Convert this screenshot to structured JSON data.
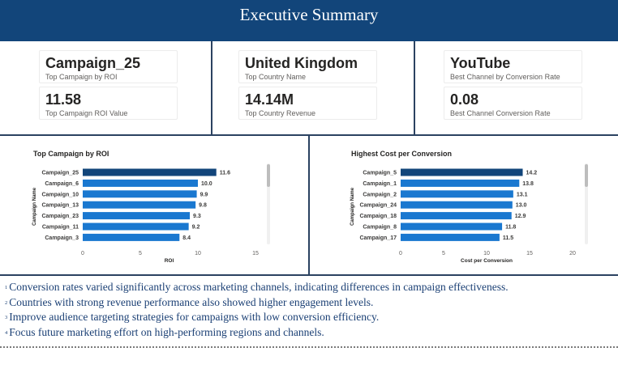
{
  "header": {
    "title": "Executive Summary"
  },
  "cards": [
    {
      "value": "Campaign_25",
      "label": "Top Campaign by ROI"
    },
    {
      "value": "11.58",
      "label": "Top Campaign ROI Value"
    },
    {
      "value": "United Kingdom",
      "label": "Top Country Name"
    },
    {
      "value": "14.14M",
      "label": "Top Country Revenue"
    },
    {
      "value": "YouTube",
      "label": "Best Channel by Conversion Rate"
    },
    {
      "value": "0.08",
      "label": "Best Channel Conversion Rate"
    }
  ],
  "colors": {
    "header": "#12457a",
    "bar_top": "#12457a",
    "bar": "#1a78d0",
    "divider": "#2b4261",
    "notes_text": "#1a3f74"
  },
  "chart_data": [
    {
      "type": "bar",
      "orientation": "horizontal",
      "title": "Top Campaign by ROI",
      "xlabel": "ROI",
      "ylabel": "Campaign Name",
      "categories": [
        "Campaign_25",
        "Campaign_6",
        "Campaign_10",
        "Campaign_13",
        "Campaign_23",
        "Campaign_11",
        "Campaign_3"
      ],
      "values": [
        11.6,
        10.0,
        9.9,
        9.8,
        9.3,
        9.2,
        8.4
      ],
      "xlim": [
        0,
        15
      ],
      "xticks": [
        "0",
        "5",
        "10",
        "15"
      ],
      "grid": false,
      "scrollbar": true
    },
    {
      "type": "bar",
      "orientation": "horizontal",
      "title": "Highest Cost per Conversion",
      "xlabel": "Cost per Conversion",
      "ylabel": "Campaign Name",
      "categories": [
        "Campaign_5",
        "Campaign_1",
        "Campaign_2",
        "Campaign_24",
        "Campaign_18",
        "Campaign_8",
        "Campaign_17"
      ],
      "values": [
        14.2,
        13.8,
        13.1,
        13.0,
        12.9,
        11.8,
        11.5
      ],
      "xlim": [
        0,
        20
      ],
      "xticks": [
        "0",
        "5",
        "10",
        "15",
        "20"
      ],
      "grid": false,
      "scrollbar": true
    }
  ],
  "notes": [
    {
      "num": "1",
      "text": "Conversion rates varied significantly across marketing channels, indicating differences in campaign effectiveness."
    },
    {
      "num": "2",
      "text": "Countries with strong revenue performance also showed higher engagement levels."
    },
    {
      "num": "3",
      "text": "Improve audience targeting strategies for campaigns with low conversion efficiency."
    },
    {
      "num": "4",
      "text": "Focus future marketing effort on high-performing regions and channels."
    }
  ]
}
